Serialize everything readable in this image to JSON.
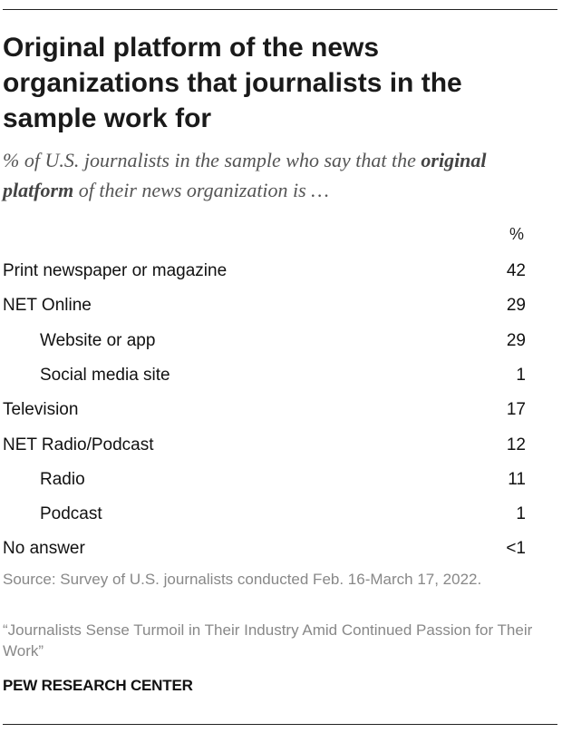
{
  "header": {
    "title": "Original platform of the news organizations that journalists in the sample work for",
    "subtitle_before": "% of U.S. journalists in the sample who say that the ",
    "subtitle_emphasis": "original platform",
    "subtitle_after": " of their news organization is …"
  },
  "chart_data": {
    "type": "table",
    "title": "Original platform of the news organizations that journalists in the sample work for",
    "column_header": "%",
    "rows": [
      {
        "label": "Print newspaper or magazine",
        "value": "42",
        "indent": false
      },
      {
        "label": "NET Online",
        "value": "29",
        "indent": false
      },
      {
        "label": "Website or app",
        "value": "29",
        "indent": true
      },
      {
        "label": "Social media site",
        "value": "1",
        "indent": true
      },
      {
        "label": "Television",
        "value": "17",
        "indent": false
      },
      {
        "label": "NET Radio/Podcast",
        "value": "12",
        "indent": false
      },
      {
        "label": "Radio",
        "value": "11",
        "indent": true
      },
      {
        "label": "Podcast",
        "value": "1",
        "indent": true
      },
      {
        "label": "No answer",
        "value": "<1",
        "indent": false
      }
    ]
  },
  "footer": {
    "source": "Source: Survey of U.S. journalists conducted Feb. 16-March 17, 2022.",
    "report": "“Journalists Sense Turmoil in Their Industry Amid Continued Passion for Their Work”",
    "brand": "PEW RESEARCH CENTER"
  }
}
